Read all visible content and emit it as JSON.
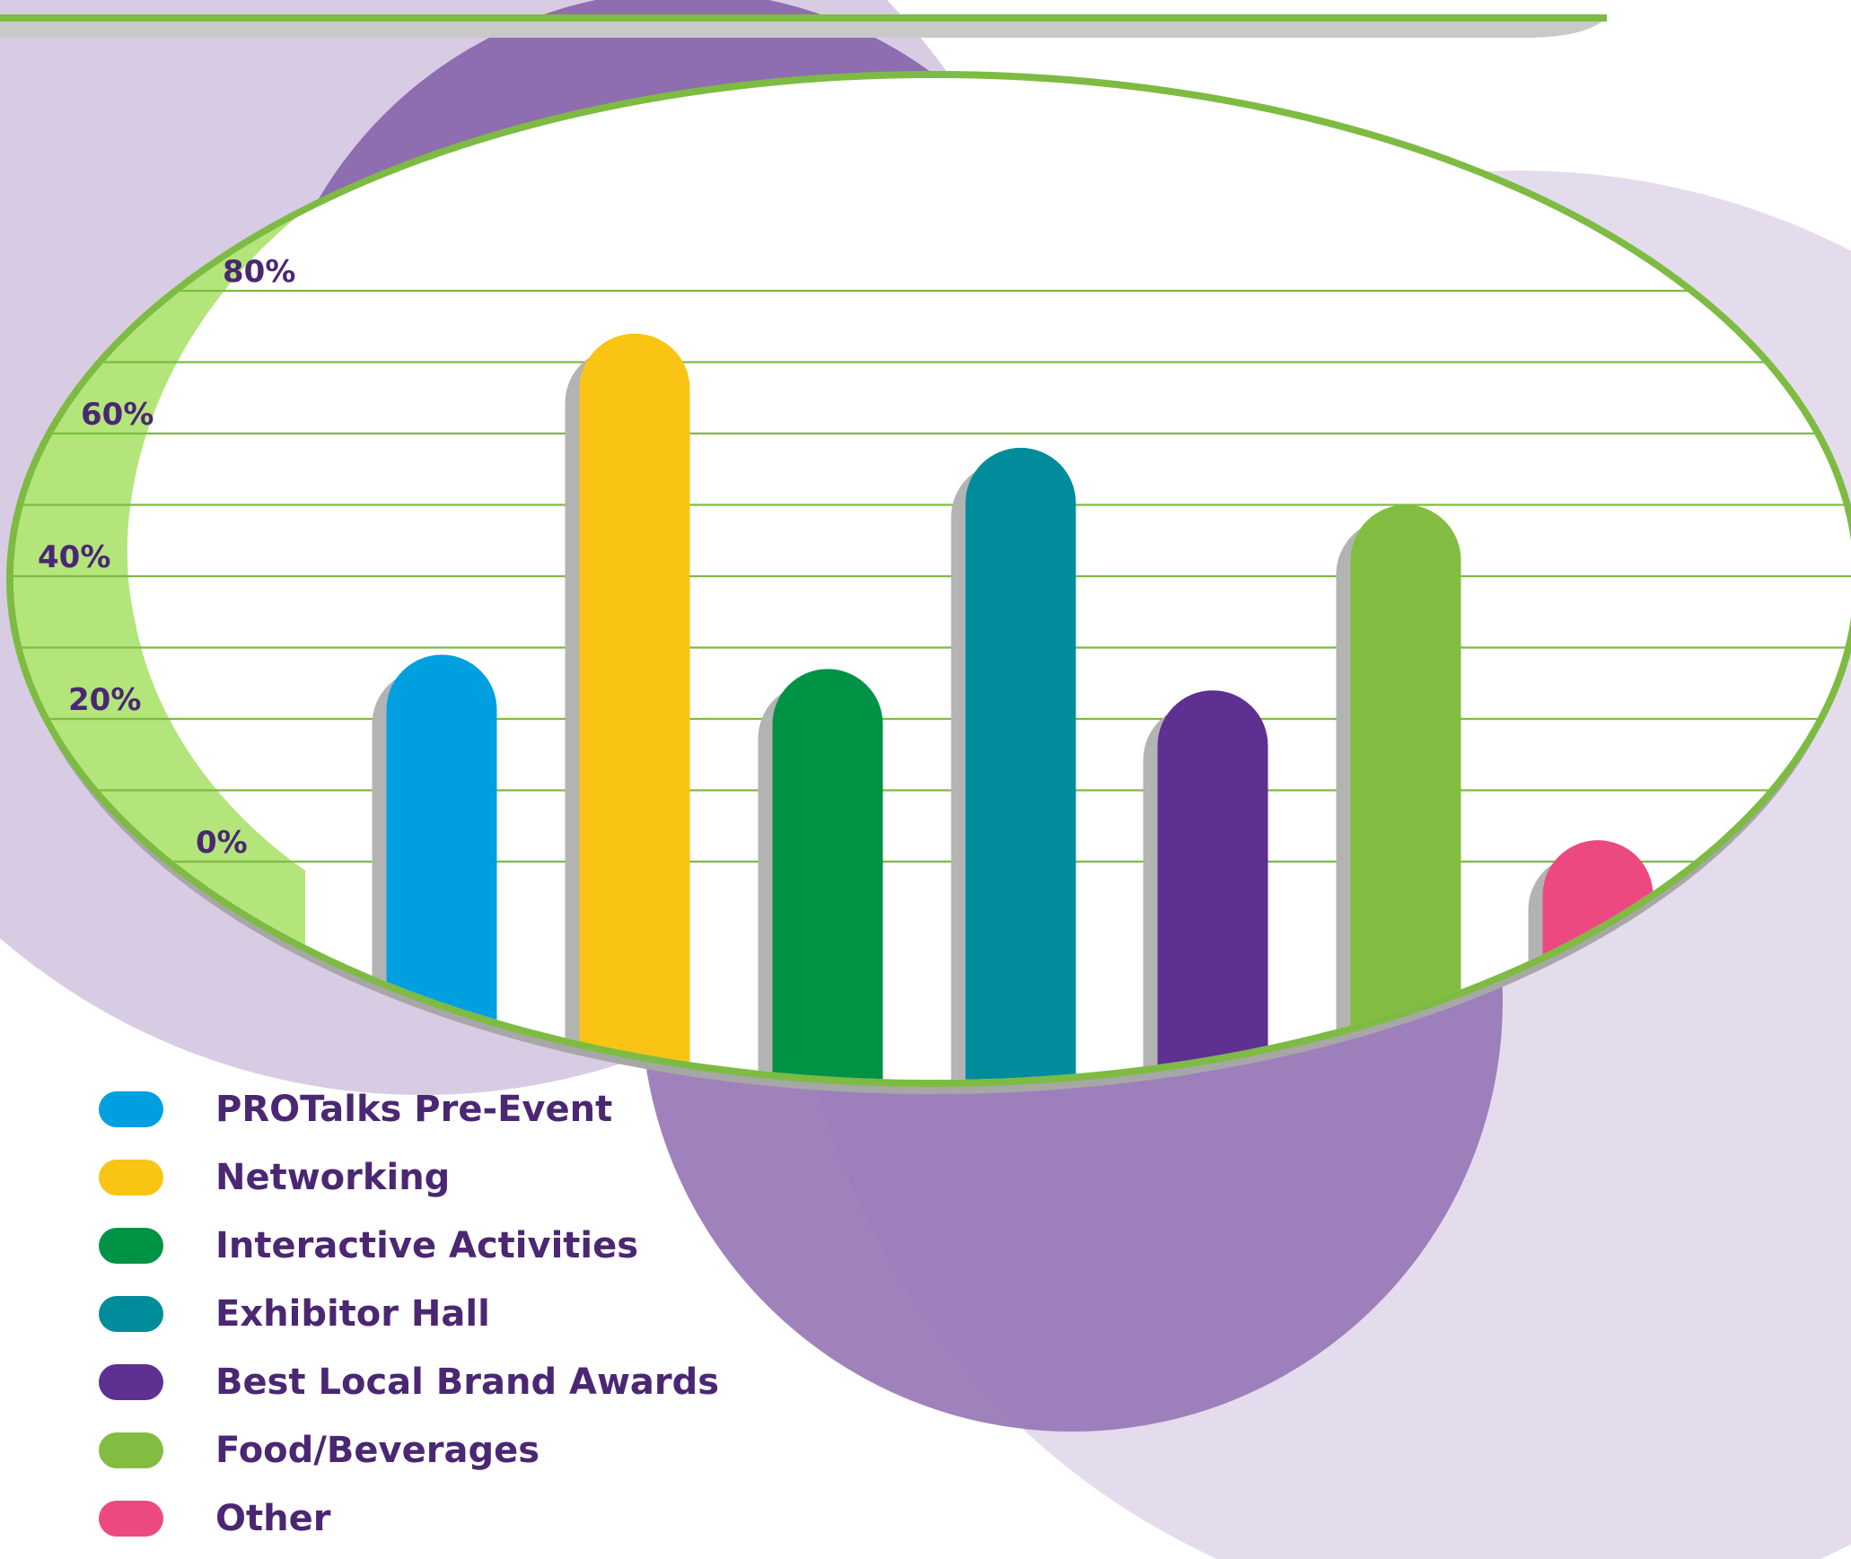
{
  "chart_data": {
    "type": "bar",
    "title": "",
    "xlabel": "",
    "ylabel": "",
    "ylim": [
      0,
      80
    ],
    "grid": true,
    "y_ticks": [
      "0%",
      "20%",
      "40%",
      "60%",
      "80%"
    ],
    "categories": [
      "PROTalks Pre-Event",
      "Networking",
      "Interactive Activities",
      "Exhibitor Hall",
      "Best Local Brand Awards",
      "Food/Beverages",
      "Other"
    ],
    "values": [
      29,
      74,
      27,
      58,
      24,
      50,
      3
    ],
    "colors": [
      "#009fe0",
      "#fac415",
      "#009245",
      "#008c9a",
      "#5e3091",
      "#82bd41",
      "#ec4981"
    ],
    "legend_position": "bottom-left"
  },
  "theme": {
    "accent_green": "#7dbb42",
    "light_green": "#b3e57b",
    "purple_dark": "#8d6bb0",
    "purple_light": "#d8cce4",
    "label_color": "#4b2773"
  }
}
